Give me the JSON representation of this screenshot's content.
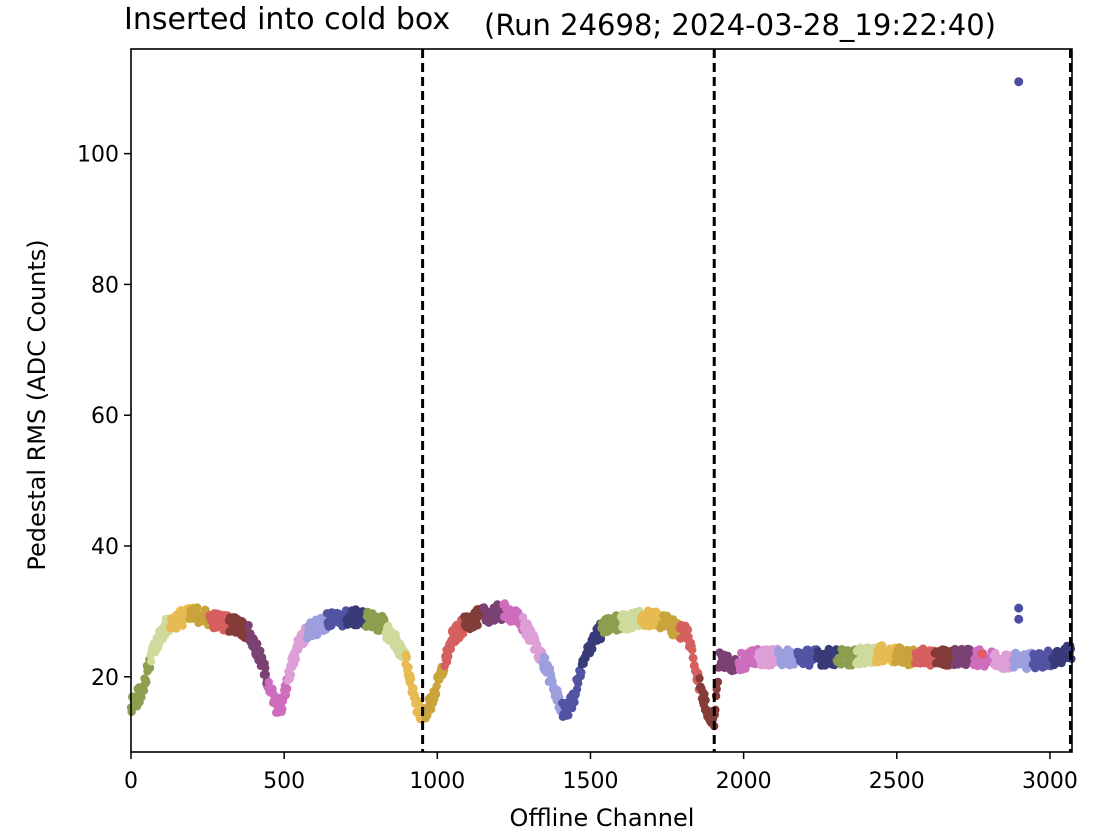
{
  "chart_data": {
    "type": "scatter",
    "title_left": "Inserted into cold box",
    "title_right": "(Run 24698; 2024-03-28_19:22:40)",
    "xlabel": "Offline Channel",
    "ylabel": "Pedestal RMS (ADC Counts)",
    "xlim": [
      0,
      3072
    ],
    "ylim": [
      8.5,
      116
    ],
    "xticks": [
      0,
      500,
      1000,
      1500,
      2000,
      2500,
      3000
    ],
    "yticks": [
      20,
      40,
      60,
      80,
      100
    ],
    "xtick_labels": [
      "0",
      "500",
      "1000",
      "1500",
      "2000",
      "2500",
      "3000"
    ],
    "ytick_labels": [
      "20",
      "40",
      "60",
      "80",
      "100"
    ],
    "grid": false,
    "legend": "none",
    "dividers": [
      952,
      1904,
      3072
    ],
    "curve_points": [
      [
        0,
        15.5
      ],
      [
        40,
        18
      ],
      [
        70,
        24
      ],
      [
        110,
        27.5
      ],
      [
        160,
        29
      ],
      [
        220,
        29.5
      ],
      [
        280,
        28.5
      ],
      [
        340,
        28
      ],
      [
        380,
        27
      ],
      [
        420,
        23
      ],
      [
        450,
        19
      ],
      [
        475,
        15
      ],
      [
        495,
        16
      ],
      [
        515,
        20
      ],
      [
        545,
        25
      ],
      [
        580,
        27
      ],
      [
        640,
        28.5
      ],
      [
        700,
        29
      ],
      [
        760,
        29
      ],
      [
        820,
        28
      ],
      [
        870,
        25
      ],
      [
        900,
        22
      ],
      [
        930,
        16
      ],
      [
        952,
        14
      ],
      [
        980,
        16
      ],
      [
        1010,
        20
      ],
      [
        1050,
        26
      ],
      [
        1100,
        28.5
      ],
      [
        1160,
        29.5
      ],
      [
        1230,
        30
      ],
      [
        1280,
        28
      ],
      [
        1320,
        25
      ],
      [
        1360,
        21
      ],
      [
        1390,
        17
      ],
      [
        1415,
        14.5
      ],
      [
        1440,
        16
      ],
      [
        1470,
        21
      ],
      [
        1510,
        26
      ],
      [
        1560,
        28
      ],
      [
        1620,
        28.5
      ],
      [
        1680,
        29
      ],
      [
        1740,
        28.5
      ],
      [
        1790,
        27
      ],
      [
        1815,
        27
      ],
      [
        1840,
        22
      ],
      [
        1860,
        18
      ],
      [
        1880,
        15
      ],
      [
        1904,
        13.5
      ],
      [
        1920,
        22.5
      ],
      [
        1960,
        22
      ],
      [
        2050,
        23
      ],
      [
        2150,
        23
      ],
      [
        2250,
        23
      ],
      [
        2350,
        23
      ],
      [
        2450,
        23.5
      ],
      [
        2550,
        23
      ],
      [
        2650,
        23
      ],
      [
        2750,
        23
      ],
      [
        2850,
        22.5
      ],
      [
        2950,
        22.5
      ],
      [
        3030,
        23
      ],
      [
        3072,
        24
      ]
    ],
    "outliers": [
      {
        "x": 2898,
        "y": 111
      },
      {
        "x": 2898,
        "y": 30.5
      },
      {
        "x": 2898,
        "y": 28.8
      },
      {
        "x": 2778,
        "y": 23.5
      }
    ],
    "colors": [
      "#8c9f4e",
      "#cedb9c",
      "#e7ba52",
      "#c9a33b",
      "#d65f5f",
      "#843c39",
      "#7b4173",
      "#ce6dbd",
      "#de9ed6",
      "#9c9ede",
      "#5254a3",
      "#393b79"
    ],
    "outlier_color": "#4b4ea0",
    "outlier_red": "#e35b5b"
  }
}
